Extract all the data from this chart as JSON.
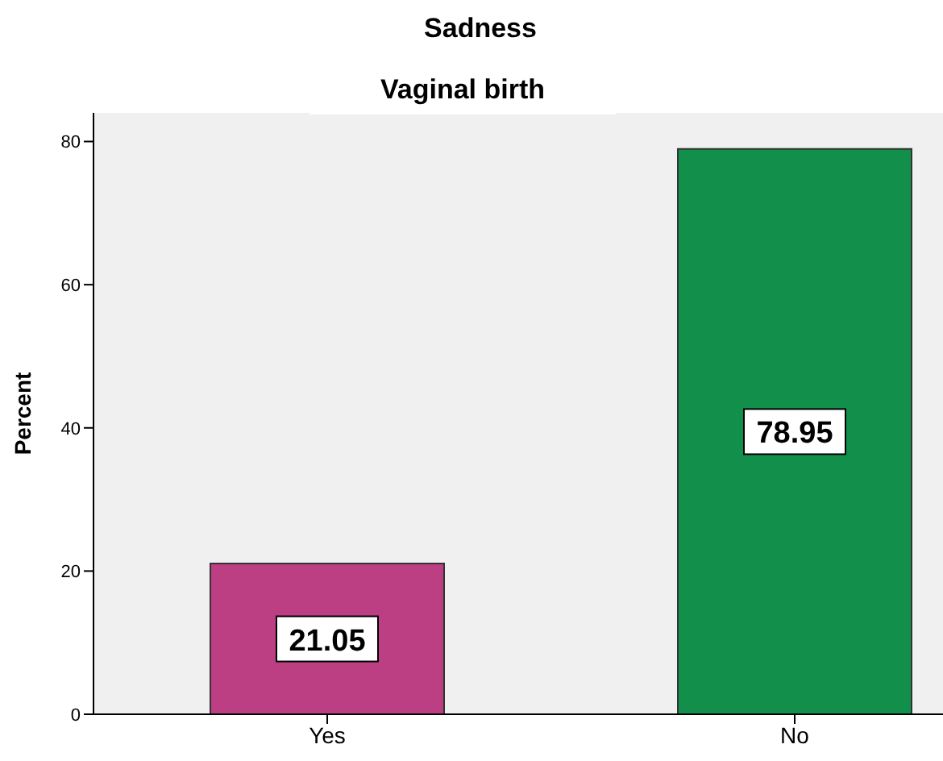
{
  "chart_data": {
    "type": "bar",
    "title": "Sadness",
    "subtitle": "Vaginal birth",
    "ylabel": "Percent",
    "categories": [
      "Yes",
      "No"
    ],
    "values": [
      21.05,
      78.95
    ],
    "colors": [
      "#bc3f84",
      "#128f4a"
    ],
    "ylim": [
      0,
      84
    ],
    "yticks": [
      0,
      20,
      40,
      60,
      80
    ],
    "data_labels": true,
    "grid": false,
    "legend": false
  }
}
